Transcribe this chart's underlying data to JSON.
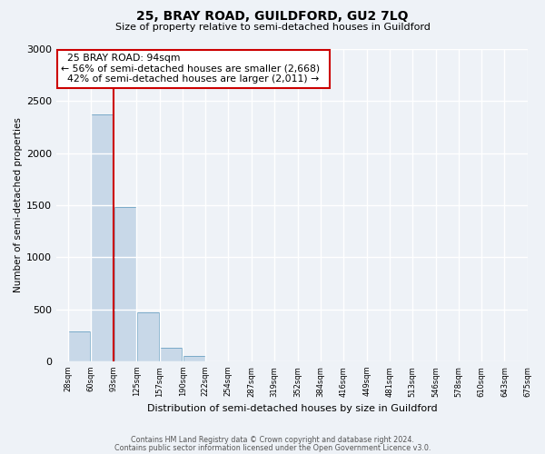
{
  "title": "25, BRAY ROAD, GUILDFORD, GU2 7LQ",
  "subtitle": "Size of property relative to semi-detached houses in Guildford",
  "xlabel": "Distribution of semi-detached houses by size in Guildford",
  "ylabel": "Number of semi-detached properties",
  "bin_labels": [
    "28sqm",
    "60sqm",
    "93sqm",
    "125sqm",
    "157sqm",
    "190sqm",
    "222sqm",
    "254sqm",
    "287sqm",
    "319sqm",
    "352sqm",
    "384sqm",
    "416sqm",
    "449sqm",
    "481sqm",
    "513sqm",
    "546sqm",
    "578sqm",
    "610sqm",
    "643sqm",
    "675sqm"
  ],
  "bar_values": [
    290,
    2370,
    1480,
    470,
    130,
    50,
    0,
    0,
    0,
    0,
    0,
    0,
    0,
    0,
    0,
    0,
    0,
    0,
    0,
    0
  ],
  "bar_color": "#c8d8e8",
  "bar_edge_color": "#7aaac8",
  "ylim": [
    0,
    3000
  ],
  "yticks": [
    0,
    500,
    1000,
    1500,
    2000,
    2500,
    3000
  ],
  "annotation_title": "25 BRAY ROAD: 94sqm",
  "annotation_line1": "← 56% of semi-detached houses are smaller (2,668)",
  "annotation_line2": "42% of semi-detached houses are larger (2,011) →",
  "vline_color": "#cc0000",
  "annotation_box_color": "#ffffff",
  "annotation_box_edge": "#cc0000",
  "footer_line1": "Contains HM Land Registry data © Crown copyright and database right 2024.",
  "footer_line2": "Contains public sector information licensed under the Open Government Licence v3.0.",
  "background_color": "#eef2f7",
  "plot_background": "#eef2f7",
  "grid_color": "#ffffff",
  "bin_starts": [
    28,
    60,
    93,
    125,
    157,
    190,
    222,
    254,
    287,
    319,
    352,
    384,
    416,
    449,
    481,
    513,
    546,
    578,
    610,
    643
  ],
  "bin_width": 32,
  "xlim_left": 12,
  "xlim_right": 675,
  "vline_x": 93
}
